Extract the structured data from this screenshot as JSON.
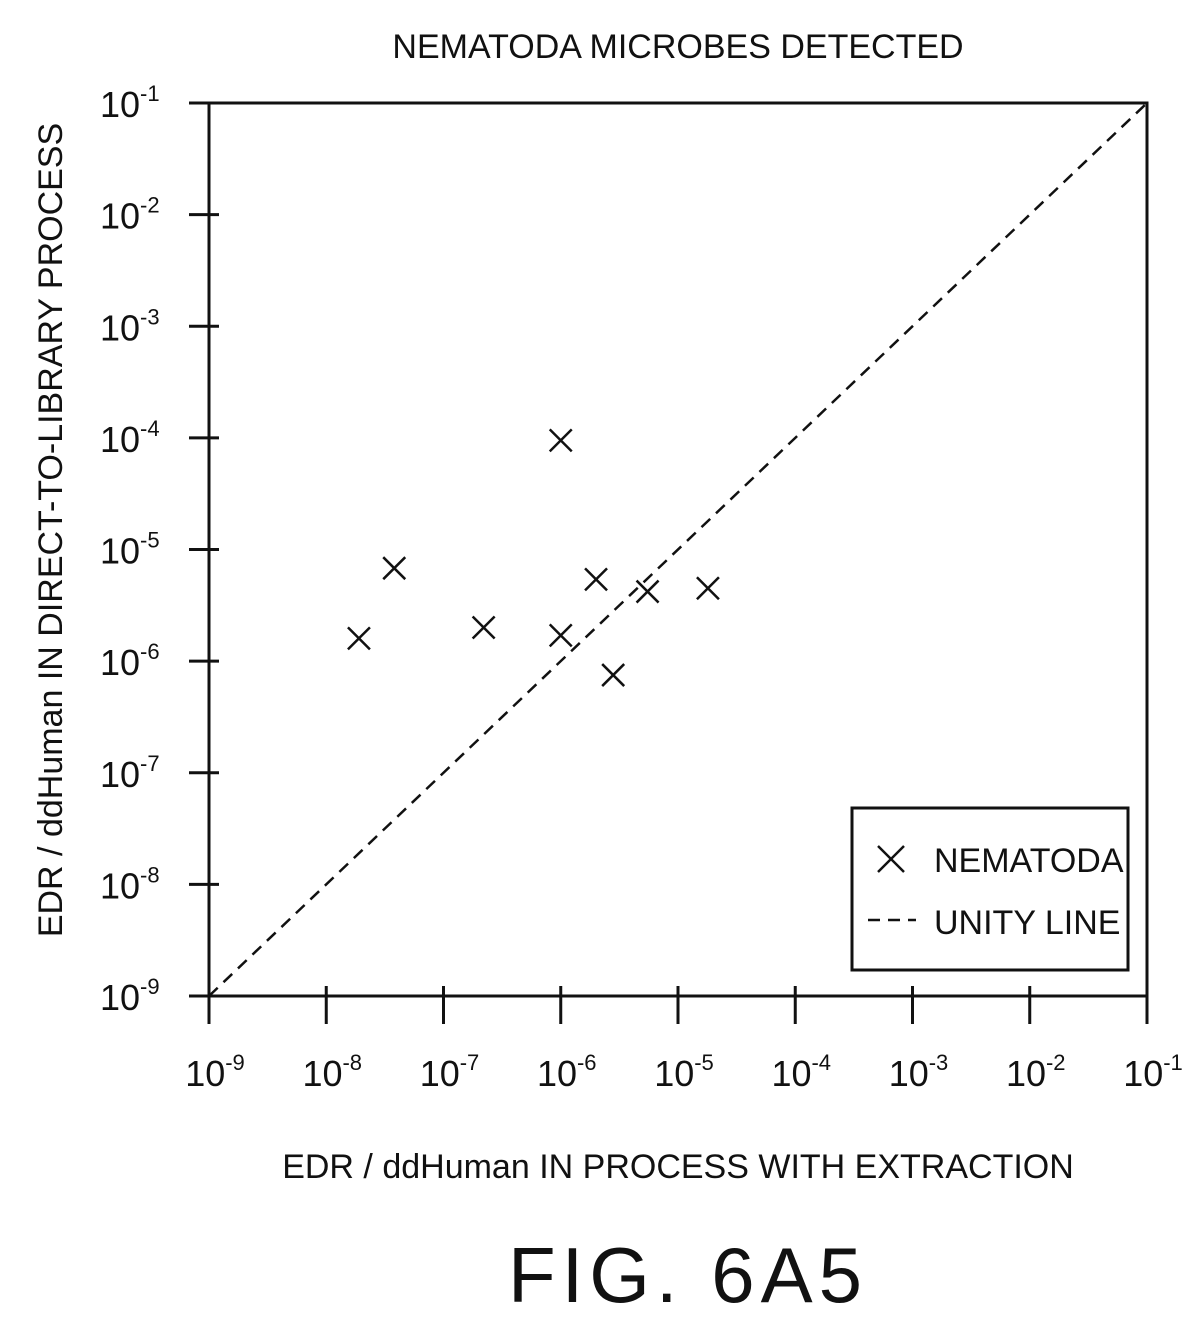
{
  "chart_data": {
    "type": "scatter",
    "title": "NEMATODA MICROBES DETECTED",
    "xlabel": "EDR / ddHuman IN PROCESS WITH EXTRACTION",
    "ylabel": "EDR / ddHuman IN DIRECT-TO-LIBRARY PROCESS",
    "x_scale": "log",
    "y_scale": "log",
    "xlim": [
      1e-09,
      0.1
    ],
    "ylim": [
      1e-09,
      0.1
    ],
    "x_ticks": [
      {
        "base": "10",
        "exp": "-9"
      },
      {
        "base": "10",
        "exp": "-8"
      },
      {
        "base": "10",
        "exp": "-7"
      },
      {
        "base": "10",
        "exp": "-6"
      },
      {
        "base": "10",
        "exp": "-5"
      },
      {
        "base": "10",
        "exp": "-4"
      },
      {
        "base": "10",
        "exp": "-3"
      },
      {
        "base": "10",
        "exp": "-2"
      },
      {
        "base": "10",
        "exp": "-1"
      }
    ],
    "y_ticks": [
      {
        "base": "10",
        "exp": "-1"
      },
      {
        "base": "10",
        "exp": "-2"
      },
      {
        "base": "10",
        "exp": "-3"
      },
      {
        "base": "10",
        "exp": "-4"
      },
      {
        "base": "10",
        "exp": "-5"
      },
      {
        "base": "10",
        "exp": "-6"
      },
      {
        "base": "10",
        "exp": "-7"
      },
      {
        "base": "10",
        "exp": "-8"
      },
      {
        "base": "10",
        "exp": "-9"
      }
    ],
    "grid": false,
    "legend_position": "bottom-right",
    "legend": [
      {
        "label": "NEMATODA",
        "marker": "x"
      },
      {
        "label": "UNITY LINE",
        "marker": "dashed-line"
      }
    ],
    "series": [
      {
        "name": "NEMATODA",
        "marker": "x",
        "points": [
          {
            "x": 1.9e-08,
            "y": 1.6e-06
          },
          {
            "x": 3.8e-08,
            "y": 6.8e-06
          },
          {
            "x": 2.2e-07,
            "y": 2e-06
          },
          {
            "x": 1e-06,
            "y": 9.5e-05
          },
          {
            "x": 1e-06,
            "y": 1.7e-06
          },
          {
            "x": 2e-06,
            "y": 5.4e-06
          },
          {
            "x": 2.8e-06,
            "y": 7.5e-07
          },
          {
            "x": 5.5e-06,
            "y": 4.2e-06
          },
          {
            "x": 1.8e-05,
            "y": 4.5e-06
          }
        ]
      },
      {
        "name": "UNITY LINE",
        "style": "dashed",
        "points": [
          {
            "x": 1e-09,
            "y": 1e-09
          },
          {
            "x": 0.1,
            "y": 0.1
          }
        ]
      }
    ]
  },
  "figure_label": "FIG. 6A5"
}
